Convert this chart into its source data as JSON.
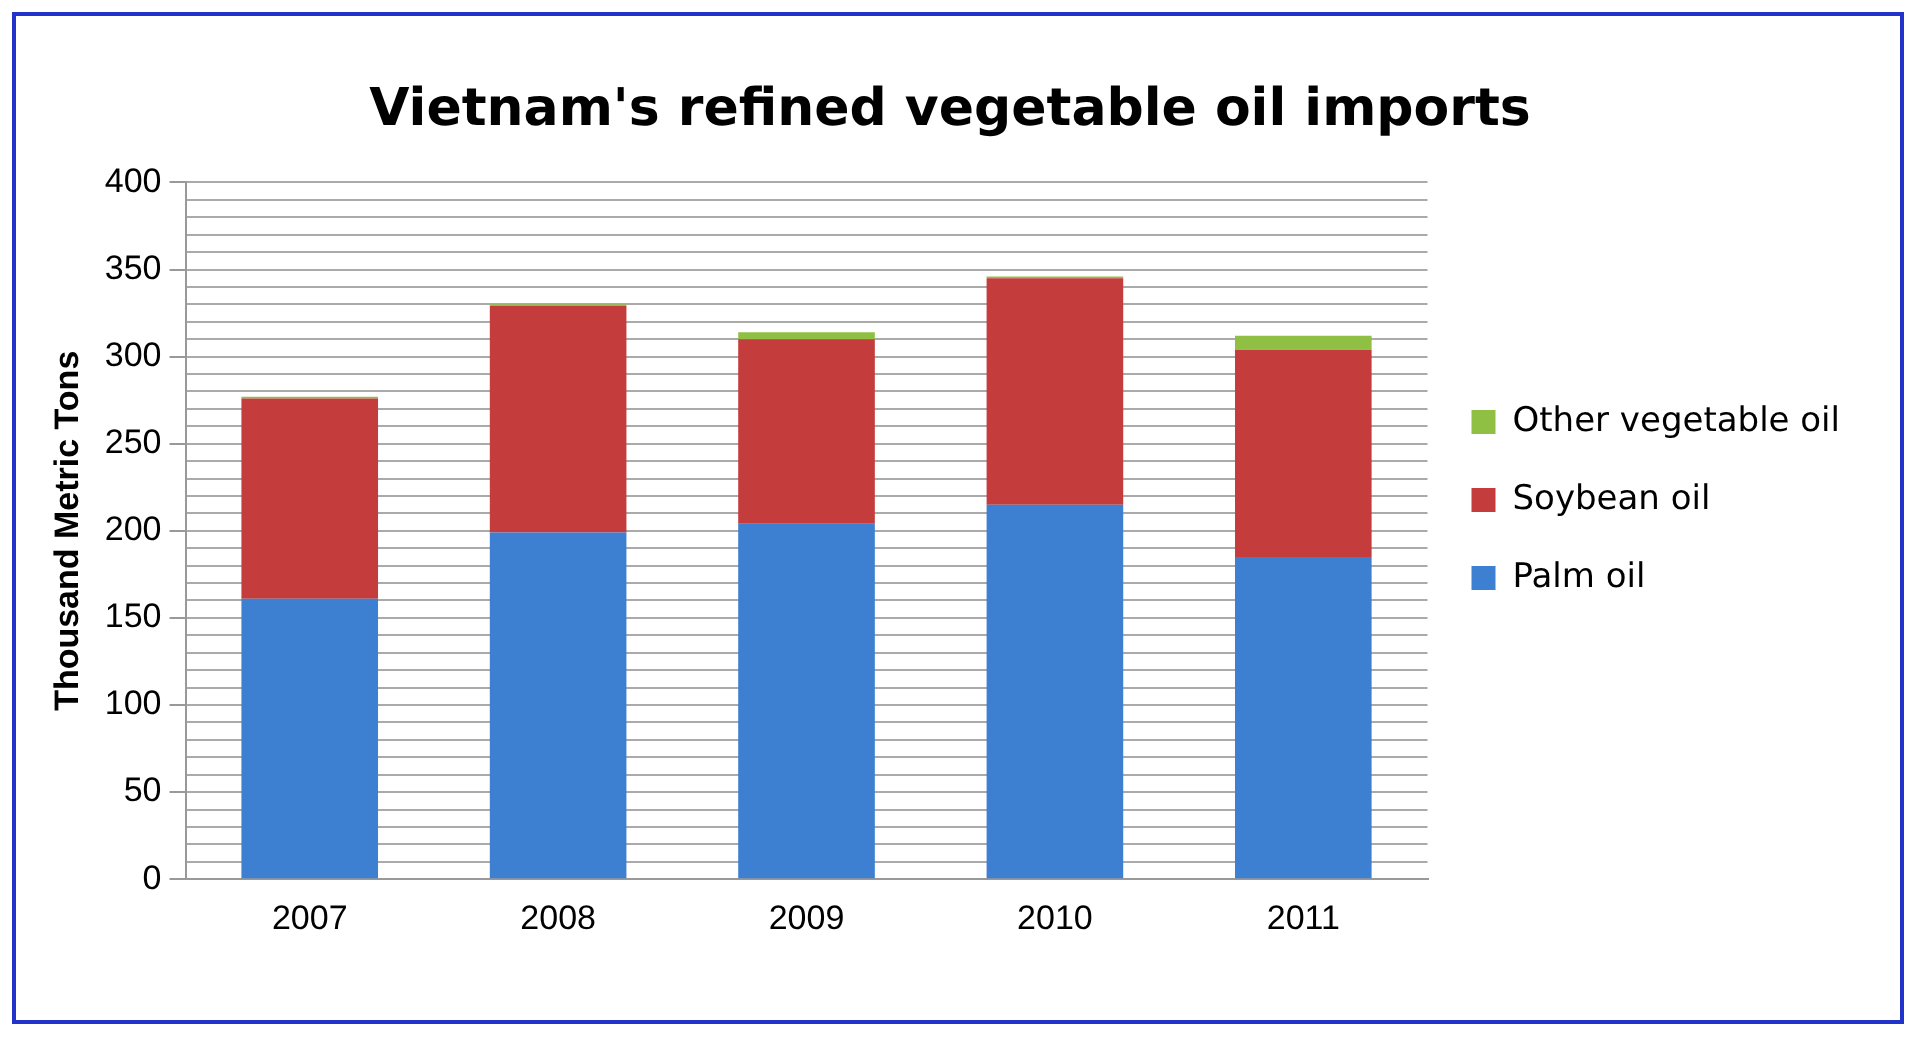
{
  "chart_data": {
    "type": "bar",
    "title": "Vietnam's refined vegetable oil imports",
    "ylabel": "Thousand Metric Tons",
    "categories": [
      "2007",
      "2008",
      "2009",
      "2010",
      "2011"
    ],
    "stacked": true,
    "series": [
      {
        "name": "Palm oil",
        "color": "#3d7fd0",
        "values": [
          161,
          199,
          204,
          215,
          185
        ]
      },
      {
        "name": "Soybean oil",
        "color": "#c43c3c",
        "values": [
          115,
          130,
          106,
          130,
          119
        ]
      },
      {
        "name": "Other vegetable oil",
        "color": "#8fc043",
        "values": [
          1,
          1,
          4,
          1,
          8
        ]
      }
    ],
    "ylim": [
      0,
      400
    ],
    "yticks": [
      0,
      {
        "value": 10,
        "label": null
      },
      {
        "value": 20,
        "label": null
      },
      {
        "value": 30,
        "label": null
      },
      {
        "value": 40,
        "label": null
      },
      50,
      {
        "value": 60,
        "label": null
      },
      {
        "value": 70,
        "label": null
      },
      {
        "value": 80,
        "label": null
      },
      {
        "value": 90,
        "label": null
      },
      100,
      {
        "value": 110,
        "label": null
      },
      {
        "value": 120,
        "label": null
      },
      {
        "value": 130,
        "label": null
      },
      {
        "value": 140,
        "label": null
      },
      150,
      {
        "value": 160,
        "label": null
      },
      {
        "value": 170,
        "label": null
      },
      {
        "value": 180,
        "label": null
      },
      {
        "value": 190,
        "label": null
      },
      200,
      {
        "value": 210,
        "label": null
      },
      {
        "value": 220,
        "label": null
      },
      {
        "value": 230,
        "label": null
      },
      {
        "value": 240,
        "label": null
      },
      250,
      {
        "value": 260,
        "label": null
      },
      {
        "value": 270,
        "label": null
      },
      {
        "value": 280,
        "label": null
      },
      {
        "value": 290,
        "label": null
      },
      300,
      {
        "value": 310,
        "label": null
      },
      {
        "value": 320,
        "label": null
      },
      {
        "value": 330,
        "label": null
      },
      {
        "value": 340,
        "label": null
      },
      350,
      {
        "value": 360,
        "label": null
      },
      {
        "value": 370,
        "label": null
      },
      {
        "value": 380,
        "label": null
      },
      {
        "value": 390,
        "label": null
      },
      400
    ],
    "grid": "y",
    "legend": "right"
  }
}
